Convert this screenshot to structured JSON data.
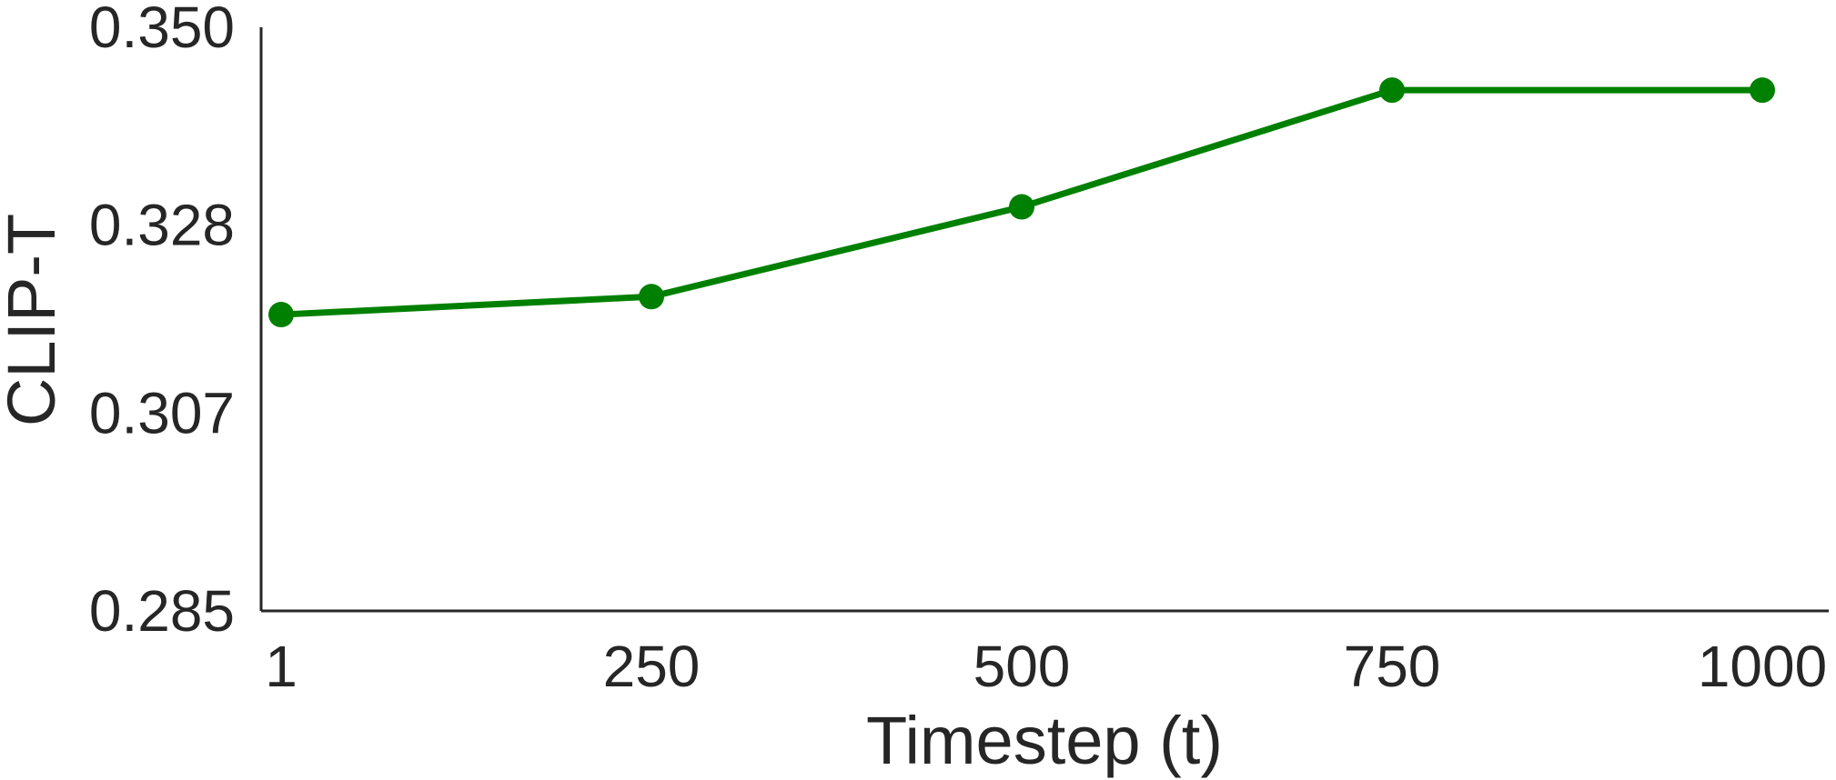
{
  "chart_data": {
    "type": "line",
    "title": "",
    "xlabel": "Timestep (t)",
    "ylabel": "CLIP-T",
    "x_ticks": [
      "1",
      "250",
      "500",
      "750",
      "1000"
    ],
    "y_ticks": [
      "0.350",
      "0.328",
      "0.307",
      "0.285"
    ],
    "ylim": [
      0.285,
      0.35
    ],
    "grid": false,
    "series": [
      {
        "color": "#008000",
        "points": [
          {
            "x": "1",
            "y": 0.318
          },
          {
            "x": "250",
            "y": 0.32
          },
          {
            "x": "500",
            "y": 0.33
          },
          {
            "x": "750",
            "y": 0.343
          },
          {
            "x": "1000",
            "y": 0.343
          }
        ]
      }
    ]
  }
}
